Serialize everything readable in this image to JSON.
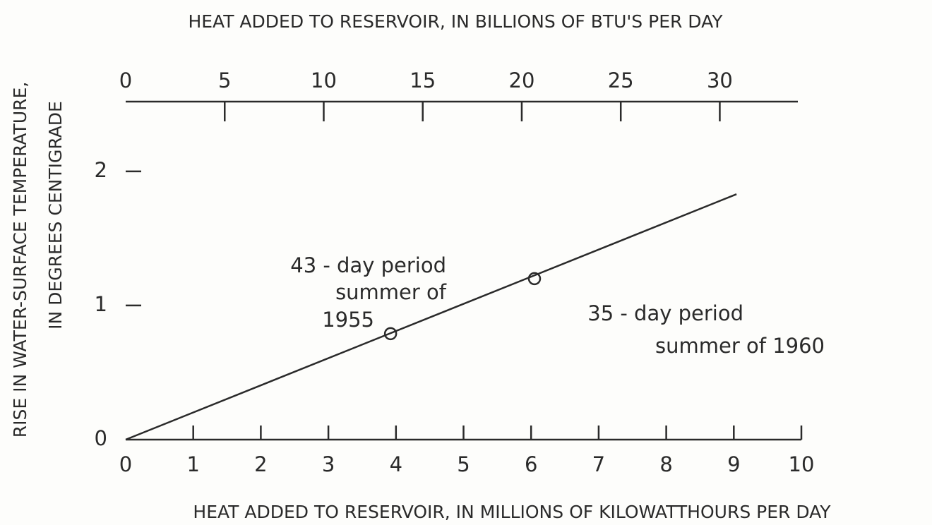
{
  "chart_data": {
    "type": "line",
    "title": "HEAT ADDED TO RESERVOIR, IN BILLIONS OF BTU'S PER DAY",
    "xlabel": "HEAT ADDED TO RESERVOIR, IN MILLIONS OF KILOWATTHOURS PER DAY",
    "ylabel": [
      "RISE IN WATER-SURFACE TEMPERATURE,",
      "IN DEGREES CENTIGRADE"
    ],
    "xlim": [
      0,
      10
    ],
    "xticks": [
      0,
      1,
      2,
      3,
      4,
      5,
      6,
      7,
      8,
      9,
      10
    ],
    "x2lim": [
      0,
      34.12
    ],
    "x2ticks": [
      0,
      5,
      10,
      15,
      20,
      25,
      30
    ],
    "ylim": [
      0,
      2.52
    ],
    "yticks": [
      0,
      1,
      2
    ],
    "color": "#2a2a2a",
    "series": [
      {
        "x": [
          0,
          9.04
        ],
        "values": [
          0,
          1.83
        ]
      },
      {
        "x": [
          3.92,
          6.05
        ],
        "values": [
          0.79,
          1.2
        ]
      }
    ],
    "annotations": [
      [
        "43 - day period",
        "summer of",
        "1955"
      ],
      [
        "35 - day period",
        "summer of 1960"
      ]
    ]
  }
}
